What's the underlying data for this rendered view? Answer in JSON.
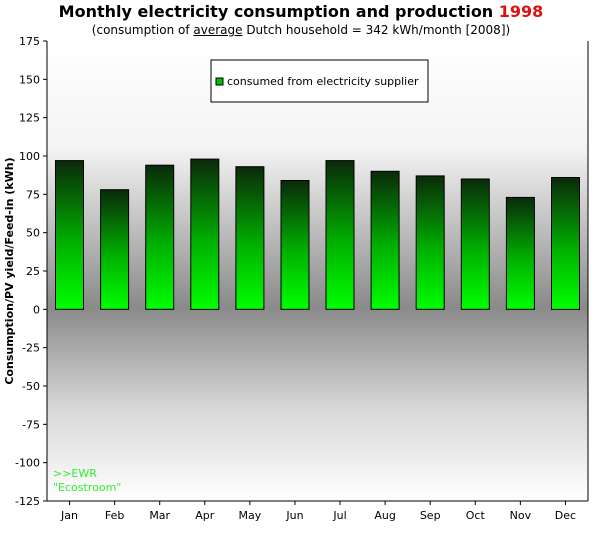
{
  "chart_data": {
    "type": "bar",
    "title_main": "Monthly electricity consumption and production",
    "title_year": "1998",
    "subtitle_pre": "(consumption of ",
    "subtitle_underlined": "average",
    "subtitle_post": " Dutch household = 342 kWh/month [2008])",
    "ylabel": "Consumption/PV yield/Feed-in (kWh)",
    "xlabel": "",
    "categories": [
      "Jan",
      "Feb",
      "Mar",
      "Apr",
      "May",
      "Jun",
      "Jul",
      "Aug",
      "Sep",
      "Oct",
      "Nov",
      "Dec"
    ],
    "series": [
      {
        "name": "consumed from electricity supplier",
        "values": [
          97,
          78,
          94,
          98,
          93,
          84,
          97,
          90,
          87,
          85,
          73,
          86
        ]
      }
    ],
    "ylim": [
      -125,
      175
    ],
    "yticks": [
      "175",
      "150",
      "125",
      "100",
      "75",
      "50",
      "25",
      "0",
      "-25",
      "-50",
      "-75",
      "-100",
      "-125"
    ],
    "legend_position": "top-center",
    "grid": false,
    "colors": {
      "bar_top": "#0a2a0a",
      "bar_bottom": "#00ff00",
      "background_mid": "#8a8a8a",
      "year": "#e01010",
      "note": "#33ee33"
    },
    "note_lines": [
      ">>EWR",
      "\"Ecostroom\""
    ]
  }
}
